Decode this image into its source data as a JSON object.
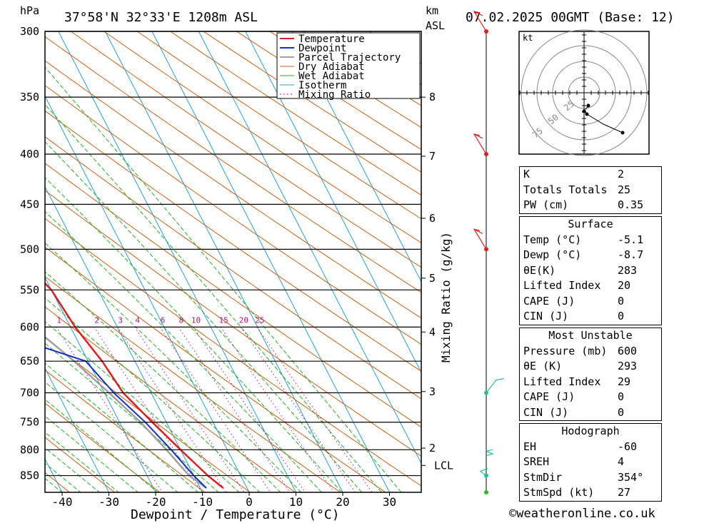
{
  "header": {
    "left_unit": "hPa",
    "location": "37°58'N  32°33'E  1208m  ASL",
    "km_label": "km",
    "asl_label": "ASL",
    "datetime": "07.02.2025  00GMT  (Base: 12)"
  },
  "chart_data": {
    "type": "skew-t",
    "xlabel": "Dewpoint / Temperature (°C)",
    "ylabel_left": "hPa",
    "ylabel_right": "Mixing Ratio (g/kg)",
    "pressure_levels": [
      300,
      350,
      400,
      450,
      500,
      550,
      600,
      650,
      700,
      750,
      800,
      850
    ],
    "temperature_ticks": [
      -40,
      -30,
      -20,
      -10,
      0,
      10,
      20,
      30
    ],
    "height_km": [
      {
        "label": "8",
        "p": 350
      },
      {
        "label": "7",
        "p": 402
      },
      {
        "label": "6",
        "p": 465
      },
      {
        "label": "5",
        "p": 535
      },
      {
        "label": "4",
        "p": 607
      },
      {
        "label": "3",
        "p": 698
      },
      {
        "label": "2",
        "p": 797
      },
      {
        "label": "LCL",
        "p": 830
      }
    ],
    "mixing_ratio_labels": [
      "1",
      "2",
      "3",
      "4",
      "6",
      "8",
      "10",
      "15",
      "20",
      "25"
    ],
    "mixing_ratio_values": [
      1,
      2,
      3,
      4,
      6,
      8,
      10,
      15,
      20,
      25
    ],
    "legend": [
      "Temperature",
      "Dewpoint",
      "Parcel Trajectory",
      "Dry Adiabat",
      "Wet Adiabat",
      "Isotherm",
      "Mixing Ratio"
    ],
    "temperature": [
      [
        875,
        -5.1
      ],
      [
        850,
        -7
      ],
      [
        800,
        -10
      ],
      [
        750,
        -13
      ],
      [
        700,
        -16
      ],
      [
        650,
        -17
      ],
      [
        600,
        -19
      ],
      [
        550,
        -20
      ],
      [
        500,
        -24
      ],
      [
        450,
        -31
      ],
      [
        400,
        -39
      ],
      [
        350,
        -45
      ],
      [
        300,
        -52
      ]
    ],
    "dewpoint": [
      [
        875,
        -8.7
      ],
      [
        850,
        -10
      ],
      [
        800,
        -12
      ],
      [
        750,
        -14.5
      ],
      [
        700,
        -18
      ],
      [
        650,
        -20.5
      ],
      [
        600,
        -39
      ],
      [
        550,
        -58
      ],
      [
        500,
        -58
      ],
      [
        450,
        -43
      ],
      [
        400,
        -57
      ],
      [
        350,
        -59
      ],
      [
        300,
        -66
      ]
    ],
    "parcel": [
      [
        875,
        -8.7
      ],
      [
        850,
        -11
      ],
      [
        800,
        -13
      ],
      [
        750,
        -15.5
      ],
      [
        700,
        -19
      ],
      [
        650,
        -23
      ],
      [
        600,
        -28
      ],
      [
        550,
        -33
      ],
      [
        500,
        -39
      ],
      [
        450,
        -45
      ],
      [
        400,
        -52
      ],
      [
        350,
        -60
      ],
      [
        300,
        -69
      ]
    ],
    "colors": {
      "temperature": "#e02020",
      "dewpoint": "#1030d0",
      "parcel": "#a0a0a0",
      "dry_adiabat": "#d06010",
      "wet_adiabat": "#20b020",
      "isotherm": "#20a0e0",
      "mixing_ratio": "#c01080"
    }
  },
  "hodograph": {
    "unit_label": "kt",
    "ring_labels": [
      "25",
      "50",
      "75"
    ]
  },
  "indices": [
    {
      "label": "K",
      "value": "2"
    },
    {
      "label": "Totals Totals",
      "value": "25"
    },
    {
      "label": "PW (cm)",
      "value": "0.35"
    }
  ],
  "surface": {
    "title": "Surface",
    "rows": [
      {
        "label": "Temp (°C)",
        "value": "-5.1"
      },
      {
        "label": "Dewp (°C)",
        "value": "-8.7"
      },
      {
        "label": "θE(K)",
        "value": "283"
      },
      {
        "label": "Lifted Index",
        "value": "20"
      },
      {
        "label": "CAPE (J)",
        "value": "0"
      },
      {
        "label": "CIN (J)",
        "value": "0"
      }
    ]
  },
  "most_unstable": {
    "title": "Most Unstable",
    "rows": [
      {
        "label": "Pressure (mb)",
        "value": "600"
      },
      {
        "label": "θE (K)",
        "value": "293"
      },
      {
        "label": "Lifted Index",
        "value": "29"
      },
      {
        "label": "CAPE (J)",
        "value": "0"
      },
      {
        "label": "CIN (J)",
        "value": "0"
      }
    ]
  },
  "hodograph_table": {
    "title": "Hodograph",
    "rows": [
      {
        "label": "EH",
        "value": "-60"
      },
      {
        "label": "SREH",
        "value": "4"
      },
      {
        "label": "StmDir",
        "value": "354°"
      },
      {
        "label": "StmSpd (kt)",
        "value": "27"
      }
    ]
  },
  "footer": {
    "copyright": "©weatheronline.co.uk"
  }
}
